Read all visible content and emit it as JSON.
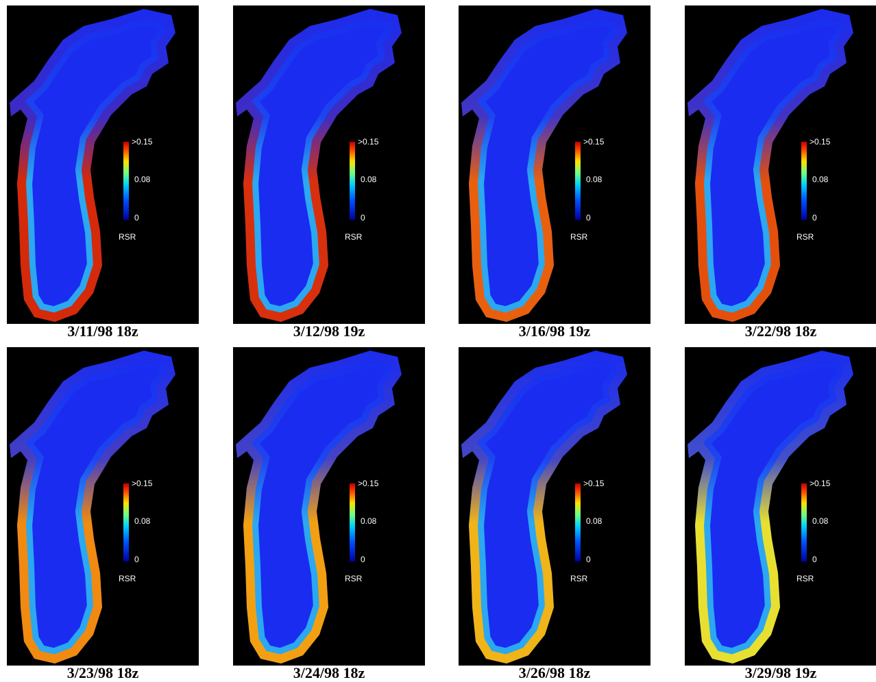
{
  "colorbar": {
    "max_label": ">0.15",
    "mid_label": "0.08",
    "min_label": "0",
    "title": "RSR"
  },
  "panels": [
    {
      "caption": "3/11/98 18z",
      "shore_color": "#d42a0a"
    },
    {
      "caption": "3/12/98 19z",
      "shore_color": "#d8300c"
    },
    {
      "caption": "3/16/98 19z",
      "shore_color": "#e8600e"
    },
    {
      "caption": "3/22/98 18z",
      "shore_color": "#e4500c"
    },
    {
      "caption": "3/23/98 18z",
      "shore_color": "#f08a10"
    },
    {
      "caption": "3/24/98 18z",
      "shore_color": "#f2a012"
    },
    {
      "caption": "3/26/98 18z",
      "shore_color": "#f0b418"
    },
    {
      "caption": "3/29/98 19z",
      "shore_color": "#e8e030"
    }
  ]
}
